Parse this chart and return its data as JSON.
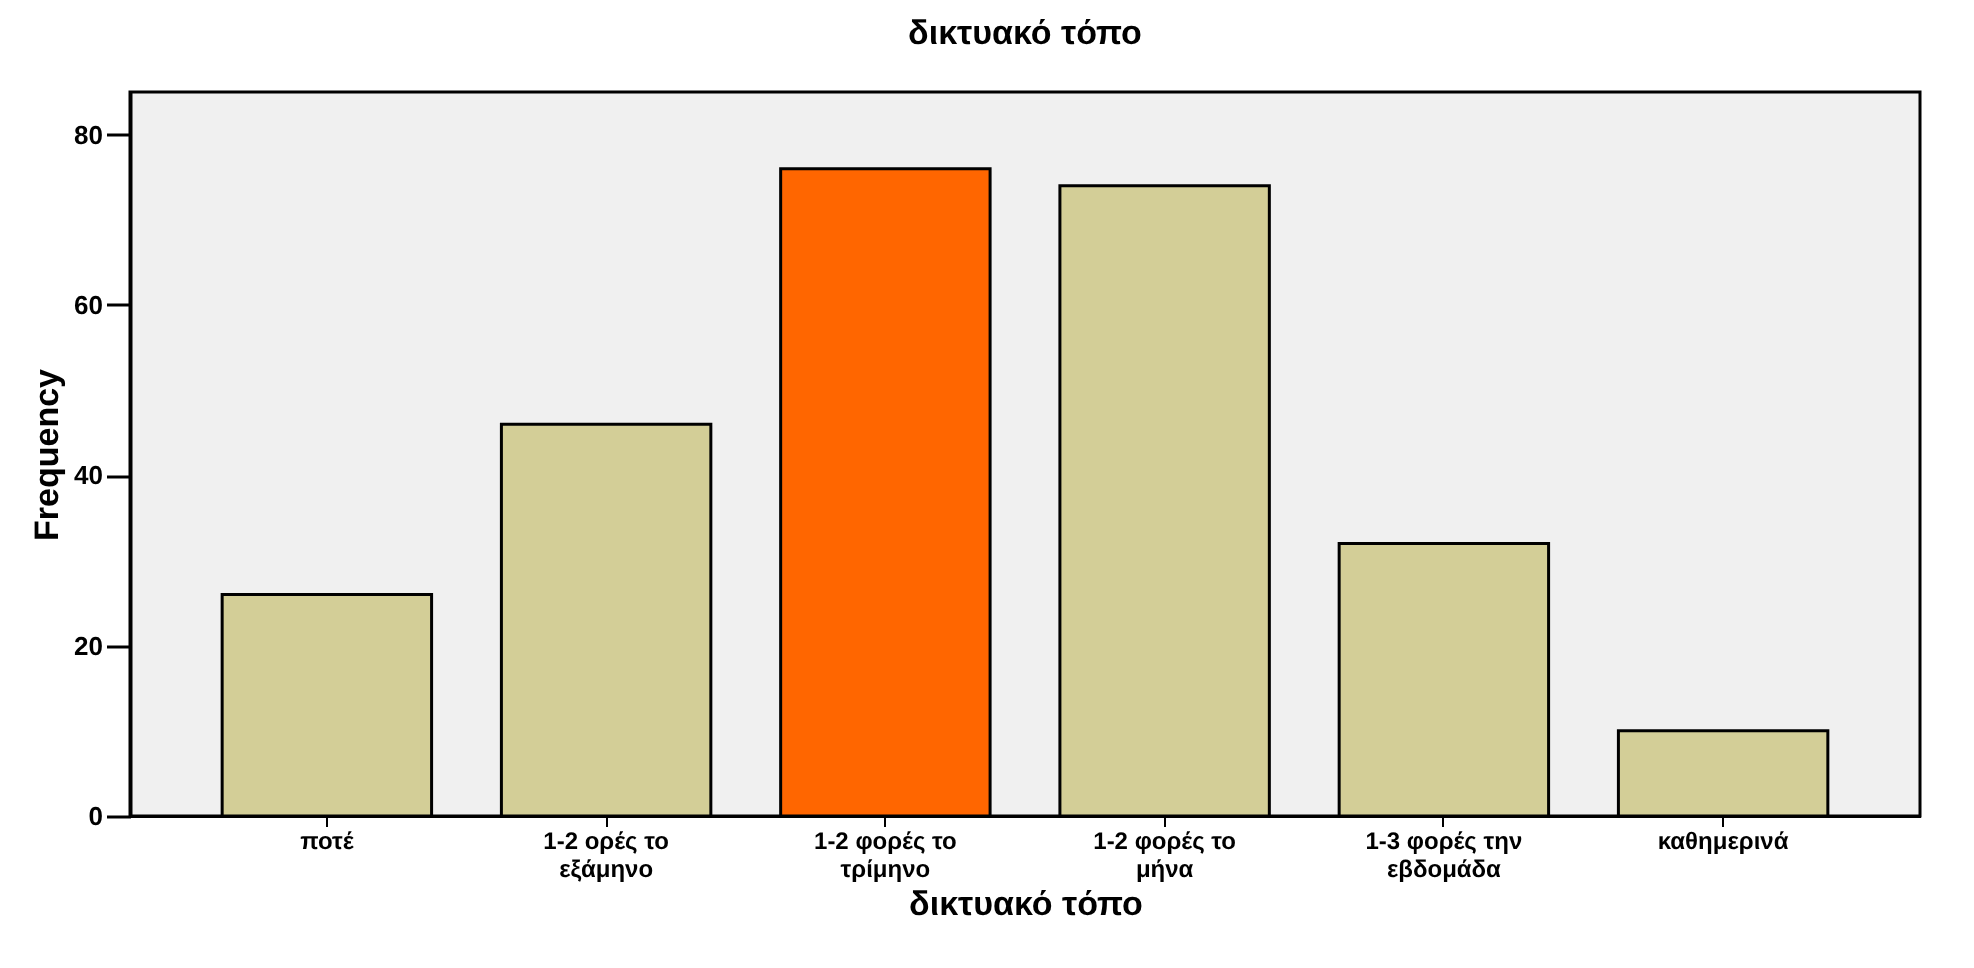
{
  "chart_data": {
    "type": "bar",
    "title": "δικτυακό τόπο",
    "xlabel": "δικτυακό τόπο",
    "ylabel": "Frequency",
    "categories": [
      "ποτέ",
      "1-2 ορές το εξάμηνο",
      "1-2 φορές το τρίμηνο",
      "1-2 φορές το μήνα",
      "1-3 φορές την εβδομάδα",
      "καθημερινά"
    ],
    "values": [
      26,
      46,
      76,
      74,
      32,
      10
    ],
    "colors": [
      "#d3ce97",
      "#d3ce97",
      "#ff6600",
      "#d3ce97",
      "#d3ce97",
      "#d3ce97"
    ],
    "ylim": [
      0,
      85
    ],
    "yticks": [
      0,
      20,
      40,
      60,
      80
    ],
    "grid": false
  }
}
